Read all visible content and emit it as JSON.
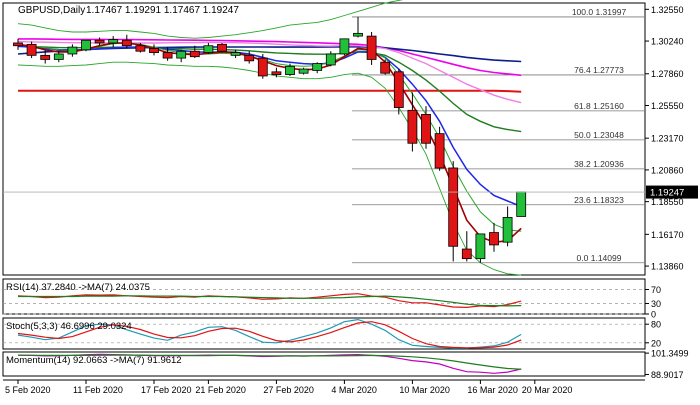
{
  "header": {
    "symbol": "GBPUSD,Daily",
    "ohlc": "1.17467 1.19291 1.17467 1.19247"
  },
  "colors": {
    "up": "#22c03a",
    "down": "#e01414",
    "bg": "#ffffff",
    "frame": "#000000"
  },
  "chart_data": [
    {
      "type": "candlestick",
      "title": "GBPUSD,Daily",
      "ylim": [
        1.1321,
        1.3301
      ],
      "y_ticks": [
        "1.32550",
        "1.30240",
        "1.27860",
        "1.25550",
        "1.23170",
        "1.20860",
        "1.18550",
        "1.16170",
        "1.13860"
      ],
      "x_ticks": [
        "5 Feb 2020",
        "11 Feb 2020",
        "17 Feb 2020",
        "21 Feb 2020",
        "27 Feb 2020",
        "4 Mar 2020",
        "10 Mar 2020",
        "16 Mar 2020",
        "20 Mar 2020"
      ],
      "x_tick_index": [
        0,
        5,
        10,
        14,
        19,
        24,
        29,
        34,
        38
      ],
      "current_price": "1.19247",
      "fib_levels": [
        {
          "label": "100.0 1.31997",
          "value": 1.31997
        },
        {
          "label": "76.4 1.27773",
          "value": 1.27773
        },
        {
          "label": "61.8 1.25160",
          "value": 1.2516
        },
        {
          "label": "50.0 1.23048",
          "value": 1.23048
        },
        {
          "label": "38.2 1.20936",
          "value": 1.20936
        },
        {
          "label": "23.6 1.18323",
          "value": 1.18323
        },
        {
          "label": "0.0 1.14099",
          "value": 1.14099
        }
      ],
      "candles": [
        {
          "o": 1.301,
          "h": 1.304,
          "l": 1.296,
          "c": 1.299
        },
        {
          "o": 1.3,
          "h": 1.302,
          "l": 1.29,
          "c": 1.292
        },
        {
          "o": 1.292,
          "h": 1.296,
          "l": 1.286,
          "c": 1.289
        },
        {
          "o": 1.289,
          "h": 1.295,
          "l": 1.287,
          "c": 1.293
        },
        {
          "o": 1.293,
          "h": 1.3,
          "l": 1.291,
          "c": 1.298
        },
        {
          "o": 1.296,
          "h": 1.303,
          "l": 1.295,
          "c": 1.303
        },
        {
          "o": 1.303,
          "h": 1.305,
          "l": 1.299,
          "c": 1.301
        },
        {
          "o": 1.301,
          "h": 1.306,
          "l": 1.298,
          "c": 1.3035
        },
        {
          "o": 1.303,
          "h": 1.307,
          "l": 1.297,
          "c": 1.299
        },
        {
          "o": 1.299,
          "h": 1.301,
          "l": 1.294,
          "c": 1.295
        },
        {
          "o": 1.297,
          "h": 1.3,
          "l": 1.292,
          "c": 1.294
        },
        {
          "o": 1.294,
          "h": 1.298,
          "l": 1.288,
          "c": 1.29
        },
        {
          "o": 1.29,
          "h": 1.296,
          "l": 1.287,
          "c": 1.295
        },
        {
          "o": 1.295,
          "h": 1.299,
          "l": 1.29,
          "c": 1.291
        },
        {
          "o": 1.294,
          "h": 1.301,
          "l": 1.293,
          "c": 1.299
        },
        {
          "o": 1.3,
          "h": 1.301,
          "l": 1.294,
          "c": 1.295
        },
        {
          "o": 1.292,
          "h": 1.296,
          "l": 1.29,
          "c": 1.294
        },
        {
          "o": 1.292,
          "h": 1.295,
          "l": 1.286,
          "c": 1.288
        },
        {
          "o": 1.29,
          "h": 1.293,
          "l": 1.275,
          "c": 1.277
        },
        {
          "o": 1.28,
          "h": 1.283,
          "l": 1.276,
          "c": 1.278
        },
        {
          "o": 1.278,
          "h": 1.286,
          "l": 1.277,
          "c": 1.284
        },
        {
          "o": 1.279,
          "h": 1.283,
          "l": 1.278,
          "c": 1.282
        },
        {
          "o": 1.281,
          "h": 1.287,
          "l": 1.279,
          "c": 1.286
        },
        {
          "o": 1.285,
          "h": 1.295,
          "l": 1.284,
          "c": 1.293
        },
        {
          "o": 1.293,
          "h": 1.304,
          "l": 1.292,
          "c": 1.304
        },
        {
          "o": 1.306,
          "h": 1.32,
          "l": 1.305,
          "c": 1.308
        },
        {
          "o": 1.306,
          "h": 1.309,
          "l": 1.285,
          "c": 1.289
        },
        {
          "o": 1.287,
          "h": 1.289,
          "l": 1.278,
          "c": 1.279
        },
        {
          "o": 1.28,
          "h": 1.282,
          "l": 1.249,
          "c": 1.254
        },
        {
          "o": 1.252,
          "h": 1.265,
          "l": 1.222,
          "c": 1.228
        },
        {
          "o": 1.249,
          "h": 1.255,
          "l": 1.224,
          "c": 1.228
        },
        {
          "o": 1.235,
          "h": 1.24,
          "l": 1.208,
          "c": 1.21
        },
        {
          "o": 1.21,
          "h": 1.215,
          "l": 1.142,
          "c": 1.153
        },
        {
          "o": 1.151,
          "h": 1.164,
          "l": 1.142,
          "c": 1.144
        },
        {
          "o": 1.144,
          "h": 1.162,
          "l": 1.141,
          "c": 1.162
        },
        {
          "o": 1.163,
          "h": 1.17,
          "l": 1.149,
          "c": 1.154
        },
        {
          "o": 1.156,
          "h": 1.182,
          "l": 1.153,
          "c": 1.174
        },
        {
          "o": 1.1747,
          "h": 1.1929,
          "l": 1.1747,
          "c": 1.1925
        }
      ],
      "overlays": [
        {
          "name": "ma-magenta",
          "color": "#ee00ee",
          "width": 1.6,
          "y": [
            1.304,
            1.304,
            1.3038,
            1.3037,
            1.3036,
            1.3036,
            1.3036,
            1.3035,
            1.3035,
            1.3034,
            1.3033,
            1.3032,
            1.3031,
            1.303,
            1.3029,
            1.3028,
            1.3026,
            1.3024,
            1.3022,
            1.302,
            1.3017,
            1.3014,
            1.3011,
            1.3008,
            1.3004,
            1.3,
            1.299,
            1.2975,
            1.2955,
            1.293,
            1.2905,
            1.288,
            1.2855,
            1.283,
            1.281,
            1.2795,
            1.2785,
            1.2775
          ]
        },
        {
          "name": "ma-navy",
          "color": "#0a1f8c",
          "width": 1.6,
          "y": [
            1.293,
            1.2938,
            1.2945,
            1.2951,
            1.2957,
            1.2962,
            1.2966,
            1.297,
            1.2973,
            1.2975,
            1.2977,
            1.2978,
            1.2979,
            1.298,
            1.2981,
            1.2981,
            1.2981,
            1.2981,
            1.2981,
            1.298,
            1.298,
            1.298,
            1.298,
            1.2981,
            1.2982,
            1.2982,
            1.298,
            1.2975,
            1.2965,
            1.2955,
            1.2943,
            1.293,
            1.2918,
            1.2905,
            1.2895,
            1.2885,
            1.288,
            1.2875
          ]
        },
        {
          "name": "ma-red-flat",
          "color": "#e01414",
          "width": 2.0,
          "y": [
            1.2662,
            1.2662,
            1.2662,
            1.2662,
            1.2662,
            1.2662,
            1.2662,
            1.2662,
            1.2662,
            1.2662,
            1.2662,
            1.2662,
            1.2662,
            1.2662,
            1.2662,
            1.2662,
            1.2662,
            1.2662,
            1.2662,
            1.2662,
            1.2662,
            1.2662,
            1.2662,
            1.2662,
            1.2662,
            1.2662,
            1.2662,
            1.2662,
            1.2662,
            1.2662,
            1.2662,
            1.2662,
            1.2662,
            1.2662,
            1.2662,
            1.2662,
            1.266,
            1.2655
          ]
        },
        {
          "name": "ma-pink",
          "color": "#f080e0",
          "width": 1.4,
          "y": [
            1.302,
            1.3018,
            1.3016,
            1.3014,
            1.3012,
            1.3011,
            1.301,
            1.301,
            1.301,
            1.301,
            1.301,
            1.3011,
            1.3012,
            1.3012,
            1.3013,
            1.3013,
            1.3012,
            1.301,
            1.3006,
            1.3001,
            1.2996,
            1.2992,
            1.2989,
            1.2987,
            1.299,
            1.299,
            1.2983,
            1.297,
            1.294,
            1.29,
            1.286,
            1.281,
            1.276,
            1.271,
            1.267,
            1.263,
            1.26,
            1.2575
          ]
        },
        {
          "name": "ma-darkgreen",
          "color": "#1e7d1e",
          "width": 1.4,
          "y": [
            1.299,
            1.2985,
            1.298,
            1.2976,
            1.2975,
            1.2976,
            1.2977,
            1.2979,
            1.2979,
            1.2977,
            1.2974,
            1.297,
            1.2968,
            1.2965,
            1.2965,
            1.2962,
            1.2958,
            1.2953,
            1.2944,
            1.2938,
            1.2934,
            1.293,
            1.2928,
            1.2928,
            1.2935,
            1.2945,
            1.294,
            1.292,
            1.287,
            1.281,
            1.274,
            1.266,
            1.257,
            1.249,
            1.244,
            1.24,
            1.238,
            1.2365
          ]
        },
        {
          "name": "ma-blue",
          "color": "#1e28e6",
          "width": 1.5,
          "y": [
            1.2985,
            1.298,
            1.297,
            1.2962,
            1.296,
            1.2962,
            1.2968,
            1.2974,
            1.298,
            1.298,
            1.2975,
            1.2965,
            1.2955,
            1.2945,
            1.2943,
            1.2945,
            1.2942,
            1.293,
            1.2905,
            1.288,
            1.287,
            1.286,
            1.2855,
            1.2865,
            1.29,
            1.2945,
            1.2945,
            1.2905,
            1.282,
            1.271,
            1.259,
            1.244,
            1.225,
            1.209,
            1.198,
            1.19,
            1.186,
            1.182
          ]
        },
        {
          "name": "ma-green",
          "color": "#2aa52a",
          "width": 1.0,
          "y": [
            1.3,
            1.299,
            1.2975,
            1.296,
            1.2955,
            1.2965,
            1.2985,
            1.3005,
            1.301,
            1.3,
            1.298,
            1.2955,
            1.294,
            1.293,
            1.293,
            1.2935,
            1.293,
            1.2915,
            1.289,
            1.286,
            1.2845,
            1.284,
            1.2845,
            1.287,
            1.2915,
            1.296,
            1.2955,
            1.29,
            1.278,
            1.264,
            1.249,
            1.232,
            1.211,
            1.193,
            1.178,
            1.169,
            1.165,
            1.164
          ]
        },
        {
          "name": "ma-darkred",
          "color": "#a00000",
          "width": 1.6,
          "y": [
            1.3,
            1.2985,
            1.296,
            1.2945,
            1.2945,
            1.2965,
            1.299,
            1.301,
            1.301,
            1.2995,
            1.297,
            1.294,
            1.293,
            1.2925,
            1.2935,
            1.2945,
            1.294,
            1.2915,
            1.288,
            1.2845,
            1.2825,
            1.2815,
            1.282,
            1.285,
            1.291,
            1.297,
            1.296,
            1.287,
            1.272,
            1.256,
            1.24,
            1.22,
            1.196,
            1.172,
            1.16,
            1.156,
            1.157,
            1.166
          ]
        },
        {
          "name": "bb-upper",
          "color": "#2aa52a",
          "width": 0.9,
          "y": [
            1.315,
            1.314,
            1.312,
            1.31,
            1.309,
            1.309,
            1.3095,
            1.31,
            1.31,
            1.309,
            1.308,
            1.306,
            1.305,
            1.3045,
            1.305,
            1.306,
            1.307,
            1.3085,
            1.31,
            1.312,
            1.314,
            1.315,
            1.316,
            1.318,
            1.321,
            1.324,
            1.327,
            1.33,
            1.332,
            1.334,
            1.336,
            1.338,
            1.34,
            1.342,
            1.344,
            1.346,
            1.348,
            1.35
          ]
        },
        {
          "name": "bb-lower",
          "color": "#2aa52a",
          "width": 0.9,
          "y": [
            1.285,
            1.2845,
            1.284,
            1.284,
            1.2845,
            1.285,
            1.286,
            1.287,
            1.287,
            1.2865,
            1.286,
            1.285,
            1.2845,
            1.284,
            1.284,
            1.2835,
            1.2825,
            1.281,
            1.279,
            1.277,
            1.276,
            1.275,
            1.275,
            1.276,
            1.278,
            1.279,
            1.276,
            1.268,
            1.254,
            1.238,
            1.22,
            1.195,
            1.17,
            1.15,
            1.141,
            1.136,
            1.133,
            1.132
          ]
        }
      ],
      "legend": "none",
      "grid": false
    },
    {
      "type": "line",
      "title": "RSI(14) 37.2840 ->MA(7) 24.0375",
      "ylim": [
        0,
        100
      ],
      "y_ticks": [
        "70",
        "30",
        "0"
      ],
      "y_tick_values": [
        70,
        30,
        0
      ],
      "series": [
        {
          "name": "RSI(14)",
          "color": "#e01414",
          "y": [
            52,
            50,
            47,
            48,
            52,
            55,
            54,
            55,
            52,
            50,
            48,
            47,
            50,
            48,
            52,
            50,
            49,
            46,
            42,
            43,
            46,
            45,
            48,
            52,
            56,
            58,
            51,
            48,
            38,
            32,
            32,
            26,
            20,
            19,
            23,
            21,
            27,
            37
          ]
        },
        {
          "name": "MA(7)",
          "color": "#1e7d1e",
          "y": [
            50,
            50,
            50,
            50,
            50,
            51,
            51,
            51,
            52,
            52,
            51,
            51,
            51,
            50,
            50,
            50,
            49,
            48,
            47,
            46,
            45,
            45,
            45,
            46,
            47,
            49,
            50,
            51,
            49,
            46,
            42,
            38,
            33,
            28,
            25,
            24,
            23,
            24
          ]
        }
      ]
    },
    {
      "type": "line",
      "title": "Stoch(5,3,3) 46.6996 29.0324",
      "ylim": [
        0,
        100
      ],
      "y_ticks": [
        "80",
        "20"
      ],
      "y_tick_values": [
        80,
        20
      ],
      "series": [
        {
          "name": "%K",
          "color": "#1e9ab4",
          "y": [
            45,
            38,
            30,
            35,
            55,
            75,
            80,
            78,
            62,
            48,
            35,
            28,
            45,
            55,
            70,
            72,
            60,
            40,
            22,
            20,
            28,
            40,
            52,
            68,
            88,
            95,
            80,
            60,
            30,
            12,
            8,
            5,
            3,
            3,
            6,
            10,
            22,
            47
          ]
        },
        {
          "name": "%D",
          "color": "#e01414",
          "y": [
            50,
            45,
            38,
            34,
            40,
            55,
            70,
            78,
            73,
            63,
            48,
            37,
            36,
            43,
            57,
            66,
            67,
            57,
            41,
            27,
            23,
            29,
            40,
            53,
            69,
            84,
            88,
            78,
            57,
            34,
            17,
            8,
            5,
            4,
            4,
            6,
            13,
            29
          ]
        }
      ]
    },
    {
      "type": "line",
      "title": "Momentum(14) 92.0663 ->MA(7) 91.9612",
      "ylim": [
        88,
        102
      ],
      "y_ticks": [
        "101.3499",
        "88.9017"
      ],
      "y_tick_values": [
        101.3499,
        88.9017
      ],
      "series": [
        {
          "name": "Momentum(14)",
          "color": "#c000c0",
          "y": [
            100.2,
            100.0,
            99.7,
            99.8,
            100.1,
            100.4,
            100.6,
            100.5,
            100.3,
            100.1,
            99.9,
            99.8,
            99.9,
            100.0,
            100.2,
            100.1,
            100.0,
            99.7,
            99.4,
            99.5,
            99.7,
            99.6,
            99.8,
            100.0,
            100.3,
            100.5,
            100.1,
            99.5,
            98.3,
            97.0,
            96.2,
            95.0,
            92.5,
            90.5,
            90.2,
            89.6,
            90.3,
            92.1
          ]
        },
        {
          "name": "MA(7)",
          "color": "#1e7d1e",
          "y": [
            100.1,
            100.1,
            100.0,
            100.0,
            100.0,
            100.0,
            100.1,
            100.2,
            100.2,
            100.2,
            100.1,
            100.0,
            100.0,
            99.9,
            99.9,
            100.0,
            100.0,
            99.9,
            99.8,
            99.8,
            99.7,
            99.7,
            99.7,
            99.7,
            99.8,
            99.9,
            100.0,
            99.9,
            99.6,
            99.2,
            98.6,
            97.8,
            96.8,
            95.6,
            94.4,
            93.3,
            92.4,
            91.96
          ]
        }
      ]
    }
  ]
}
